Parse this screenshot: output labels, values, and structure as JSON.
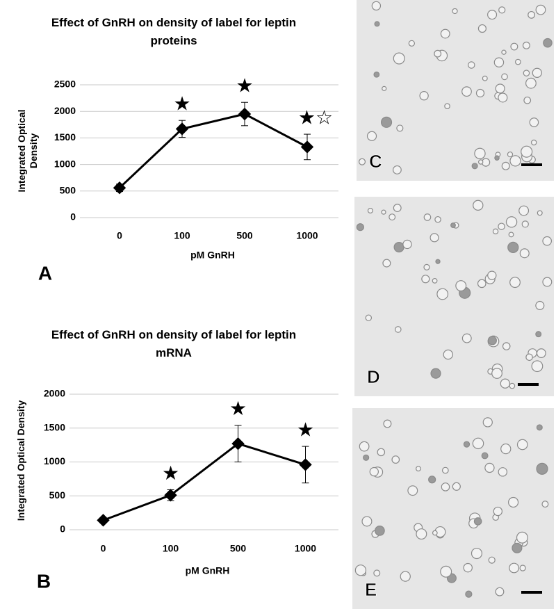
{
  "chart_data": [
    {
      "type": "line",
      "panel_label": "A",
      "title": "Effect of GnRH on density of label for leptin proteins",
      "xlabel": "pM GnRH",
      "ylabel": "Integrated Optical Density",
      "categories": [
        "0",
        "100",
        "500",
        "1000"
      ],
      "values": [
        560,
        1670,
        1950,
        1330
      ],
      "errors": [
        70,
        160,
        220,
        240
      ],
      "significance": [
        null,
        "★",
        "★",
        "★☆"
      ],
      "color": "#000000",
      "ylim": [
        0,
        2500
      ],
      "yticks": [
        0,
        500,
        1000,
        1500,
        2000,
        2500
      ],
      "grid": true
    },
    {
      "type": "line",
      "panel_label": "B",
      "title": "Effect of GnRH on density of label for leptin mRNA",
      "xlabel": "pM GnRH",
      "ylabel": "Integrated Optical Density",
      "categories": [
        "0",
        "100",
        "500",
        "1000"
      ],
      "values": [
        140,
        510,
        1270,
        960
      ],
      "errors": [
        20,
        80,
        270,
        270
      ],
      "significance": [
        null,
        "★",
        "★",
        "★"
      ],
      "color": "#000000",
      "ylim": [
        0,
        2000
      ],
      "yticks": [
        0,
        500,
        1000,
        1500,
        2000
      ],
      "grid": true
    }
  ],
  "image_panels": [
    {
      "label": "C"
    },
    {
      "label": "D"
    },
    {
      "label": "E"
    }
  ]
}
